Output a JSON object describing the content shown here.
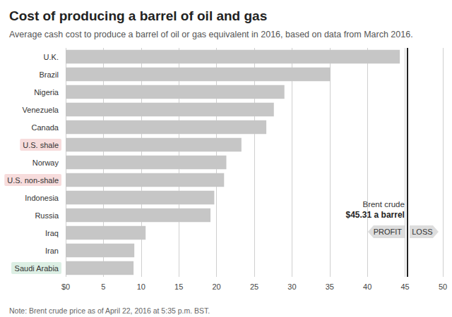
{
  "chart_data": {
    "type": "bar",
    "title": "Cost of producing a barrel of oil and gas",
    "subtitle": "Average cash cost to produce a barrel of oil or gas equivalent in 2016, based on data from March 2016.",
    "note": "Note: Brent crude price as of April 22, 2016 at 5:35 p.m. BST.",
    "orientation": "horizontal",
    "categories": [
      "U.K.",
      "Brazil",
      "Nigeria",
      "Venezuela",
      "Canada",
      "U.S. shale",
      "Norway",
      "U.S. non-shale",
      "Indonesia",
      "Russia",
      "Iraq",
      "Iran",
      "Saudi Arabia"
    ],
    "values": [
      44.3,
      35.1,
      29.0,
      27.6,
      26.6,
      23.3,
      21.3,
      21.0,
      19.7,
      19.2,
      10.6,
      9.1,
      9.0
    ],
    "color": "#c6c6c6",
    "xlim": [
      0,
      50
    ],
    "xticks": [
      {
        "value": 0,
        "label": "$0"
      },
      5,
      10,
      15,
      20,
      25,
      30,
      35,
      40,
      45,
      50
    ],
    "grid": true,
    "data_labels": false,
    "label_highlights": {
      "U.S. shale": "#f7dcdc",
      "U.S. non-shale": "#f7dcdc",
      "Saudi Arabia": "#dcefe4"
    },
    "reference_line": {
      "value": 45.31,
      "label": "Brent crude",
      "value_label": "$45.31 a barrel"
    },
    "annotations": [
      "PROFIT",
      "LOSS"
    ]
  }
}
